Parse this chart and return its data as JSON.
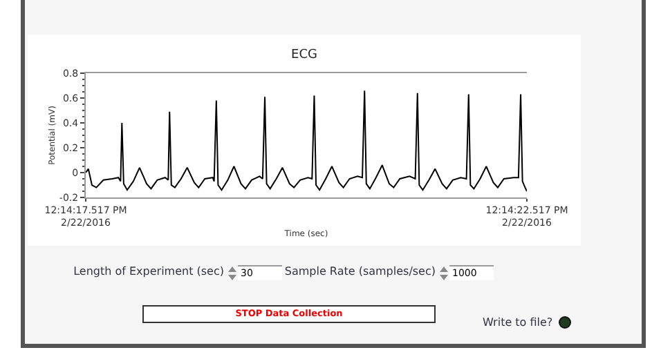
{
  "chart_data": {
    "type": "line",
    "title": "ECG",
    "xlabel": "Time (sec)",
    "ylabel": "Potential (mV)",
    "x": [
      "2016-02-22T12:14:17.517",
      "2016-02-22T12:14:17.547",
      "2016-02-22T12:14:17.587",
      "2016-02-22T12:14:17.637",
      "2016-02-22T12:14:17.717",
      "2016-02-22T12:14:17.817",
      "2016-02-22T12:14:17.887",
      "2016-02-22T12:14:17.912",
      "2016-02-22T12:14:17.927",
      "2016-02-22T12:14:17.947",
      "2016-02-22T12:14:17.987",
      "2016-02-22T12:14:18.057",
      "2016-02-22T12:14:18.127",
      "2016-02-22T12:14:18.207",
      "2016-02-22T12:14:18.257",
      "2016-02-22T12:14:18.327",
      "2016-02-22T12:14:18.417",
      "2016-02-22T12:14:18.452",
      "2016-02-22T12:14:18.467",
      "2016-02-22T12:14:18.487",
      "2016-02-22T12:14:18.527",
      "2016-02-22T12:14:18.597",
      "2016-02-22T12:14:18.667",
      "2016-02-22T12:14:18.747",
      "2016-02-22T12:14:18.797",
      "2016-02-22T12:14:18.867",
      "2016-02-22T12:14:18.957",
      "2016-02-22T12:14:18.972",
      "2016-02-22T12:14:18.997",
      "2016-02-22T12:14:19.017",
      "2016-02-22T12:14:19.057",
      "2016-02-22T12:14:19.127",
      "2016-02-22T12:14:19.197",
      "2016-02-22T12:14:19.277",
      "2016-02-22T12:14:19.327",
      "2016-02-22T12:14:19.397",
      "2016-02-22T12:14:19.487",
      "2016-02-22T12:14:19.522",
      "2016-02-22T12:14:19.547",
      "2016-02-22T12:14:19.567",
      "2016-02-22T12:14:19.607",
      "2016-02-22T12:14:19.677",
      "2016-02-22T12:14:19.747",
      "2016-02-22T12:14:19.827",
      "2016-02-22T12:14:19.877",
      "2016-02-22T12:14:19.947",
      "2016-02-22T12:14:20.037",
      "2016-02-22T12:14:20.082",
      "2016-02-22T12:14:20.107",
      "2016-02-22T12:14:20.127",
      "2016-02-22T12:14:20.167",
      "2016-02-22T12:14:20.237",
      "2016-02-22T12:14:20.307",
      "2016-02-22T12:14:20.387",
      "2016-02-22T12:14:20.437",
      "2016-02-22T12:14:20.507",
      "2016-02-22T12:14:20.597",
      "2016-02-22T12:14:20.652",
      "2016-02-22T12:14:20.677",
      "2016-02-22T12:14:20.697",
      "2016-02-22T12:14:20.737",
      "2016-02-22T12:14:20.807",
      "2016-02-22T12:14:20.877",
      "2016-02-22T12:14:20.957",
      "2016-02-22T12:14:21.007",
      "2016-02-22T12:14:21.077",
      "2016-02-22T12:14:21.187",
      "2016-02-22T12:14:21.252",
      "2016-02-22T12:14:21.277",
      "2016-02-22T12:14:21.297",
      "2016-02-22T12:14:21.337",
      "2016-02-22T12:14:21.407",
      "2016-02-22T12:14:21.477",
      "2016-02-22T12:14:21.557",
      "2016-02-22T12:14:21.607",
      "2016-02-22T12:14:21.677",
      "2016-02-22T12:14:21.767",
      "2016-02-22T12:14:21.832",
      "2016-02-22T12:14:21.857",
      "2016-02-22T12:14:21.877",
      "2016-02-22T12:14:21.917",
      "2016-02-22T12:14:21.987",
      "2016-02-22T12:14:22.057",
      "2016-02-22T12:14:22.137",
      "2016-02-22T12:14:22.187",
      "2016-02-22T12:14:22.257",
      "2016-02-22T12:14:22.367",
      "2016-02-22T12:14:22.422",
      "2016-02-22T12:14:22.447",
      "2016-02-22T12:14:22.467",
      "2016-02-22T12:14:22.497",
      "2016-02-22T12:14:22.517"
    ],
    "series": [
      {
        "color": "#000000",
        "values": [
          0.0,
          0.03,
          -0.1,
          -0.12,
          -0.06,
          -0.05,
          -0.04,
          -0.07,
          0.4,
          -0.09,
          -0.14,
          -0.07,
          0.04,
          -0.09,
          -0.13,
          -0.06,
          -0.04,
          -0.06,
          0.49,
          -0.1,
          -0.12,
          -0.05,
          0.04,
          -0.08,
          -0.12,
          -0.05,
          -0.04,
          -0.07,
          0.58,
          -0.1,
          -0.14,
          -0.06,
          0.05,
          -0.09,
          -0.13,
          -0.06,
          -0.03,
          -0.05,
          0.61,
          -0.09,
          -0.13,
          -0.05,
          0.04,
          -0.09,
          -0.12,
          -0.06,
          -0.04,
          -0.05,
          0.62,
          -0.1,
          -0.14,
          -0.05,
          0.05,
          -0.08,
          -0.12,
          -0.05,
          -0.03,
          -0.04,
          0.66,
          -0.09,
          -0.13,
          -0.04,
          0.06,
          -0.09,
          -0.12,
          -0.05,
          -0.03,
          -0.05,
          0.64,
          -0.1,
          -0.14,
          -0.06,
          0.03,
          -0.09,
          -0.13,
          -0.06,
          -0.04,
          -0.05,
          0.63,
          -0.1,
          -0.13,
          -0.05,
          0.05,
          -0.08,
          -0.12,
          -0.05,
          -0.04,
          -0.04,
          0.63,
          -0.07,
          -0.12,
          -0.15
        ]
      }
    ],
    "xlim": [
      "2016-02-22T12:14:17.517",
      "2016-02-22T12:14:22.517"
    ],
    "xticks": [
      {
        "value": "2016-02-22T12:14:17.517",
        "label": "12:14:17.517 PM\n2/22/2016"
      },
      {
        "value": "2016-02-22T12:14:22.517",
        "label": "12:14:22.517 PM\n2/22/2016"
      }
    ],
    "ylim": [
      -0.2,
      0.8
    ],
    "yticks": [
      -0.2,
      0,
      0.2,
      0.4,
      0.6,
      0.8
    ],
    "grid": false,
    "marker": "none",
    "line_style": "solid",
    "annotations": [
      "Length of Experiment (sec)",
      "30",
      "Sample Rate (samples/sec)",
      "1000",
      "STOP Data Collection",
      "Write to file?"
    ]
  }
}
